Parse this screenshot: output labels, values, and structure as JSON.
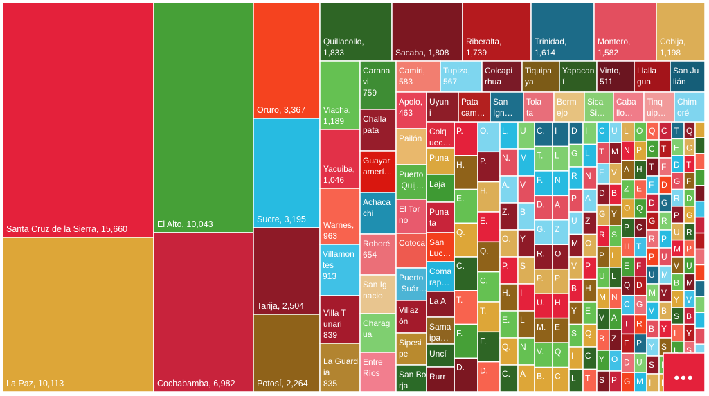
{
  "chart_data": {
    "type": "treemap",
    "title": "",
    "more_indicator": "...",
    "items": [
      {
        "label": "Santa Cruz de la Sierra",
        "value": 15660,
        "color": "#e4213b"
      },
      {
        "label": "La Paz",
        "value": 10113,
        "color": "#dda638"
      },
      {
        "label": "El Alto",
        "value": 10043,
        "color": "#46a037"
      },
      {
        "label": "Cochabamba",
        "value": 6982,
        "color": "#c8233c"
      },
      {
        "label": "Oruro",
        "value": 3367,
        "color": "#f5431f"
      },
      {
        "label": "Sucre",
        "value": 3195,
        "color": "#27bbe1"
      },
      {
        "label": "Tarija",
        "value": 2504,
        "color": "#8e1a27"
      },
      {
        "label": "Potosí",
        "value": 2264,
        "color": "#8f6219"
      },
      {
        "label": "Quillacollo",
        "value": 1833,
        "color": "#2e6525"
      },
      {
        "label": "Sacaba",
        "value": 1808,
        "color": "#7c1721"
      },
      {
        "label": "Riberalta",
        "value": 1739,
        "color": "#b51a1e"
      },
      {
        "label": "Trinidad",
        "value": 1614,
        "color": "#1c6b88"
      },
      {
        "label": "Montero",
        "value": 1582,
        "color": "#e34f5f"
      },
      {
        "label": "Cobija",
        "value": 1198,
        "color": "#dcae56"
      },
      {
        "label": "Viacha",
        "value": 1189,
        "color": "#65c152"
      },
      {
        "label": "Yacuiba",
        "value": 1046,
        "color": "#e23148"
      },
      {
        "label": "Warnes",
        "value": 963,
        "color": "#f8634e"
      },
      {
        "label": "Villamontes",
        "value": 913,
        "color": "#40c1e6"
      },
      {
        "label": "Villa Tunari",
        "value": 839,
        "color": "#a51a2c"
      },
      {
        "label": "La Guardia",
        "value": 835,
        "color": "#b28430"
      },
      {
        "label": "Caranavi",
        "value": 759,
        "color": "#3e8d34"
      },
      {
        "label": "Challapata",
        "value": null,
        "color": "#971d2b"
      },
      {
        "label": "Guayaramerín",
        "value": null,
        "color": "#d9170f"
      },
      {
        "label": "Achacachi",
        "value": null,
        "color": "#1f8fb0"
      },
      {
        "label": "Roboré",
        "value": 654,
        "color": "#eb6f78"
      },
      {
        "label": "San Ignacio",
        "value": null,
        "color": "#e8c58f"
      },
      {
        "label": "Charagua",
        "value": null,
        "color": "#7fcf70"
      },
      {
        "label": "Entre Ríos",
        "value": null,
        "color": "#f27e8e"
      },
      {
        "label": "Camiri",
        "value": 583,
        "color": "#f27e70"
      },
      {
        "label": "Tupiza",
        "value": 567,
        "color": "#7ed6ef"
      },
      {
        "label": "Colcapirhua",
        "value": null,
        "color": "#7a1a27"
      },
      {
        "label": "Tiquipaya",
        "value": 518,
        "color": "#7c5b17"
      },
      {
        "label": "Yapacaní",
        "value": 517,
        "color": "#2f5d22"
      },
      {
        "label": "Vinto",
        "value": 511,
        "color": "#6b1520"
      },
      {
        "label": "Llallagua",
        "value": null,
        "color": "#a3141a"
      },
      {
        "label": "San Julián",
        "value": null,
        "color": "#155e78"
      },
      {
        "label": "Apolo",
        "value": 463,
        "color": "#e74257"
      },
      {
        "label": "Pailón",
        "value": null,
        "color": "#e9b86c"
      },
      {
        "label": "Puerto Quijarro",
        "value": null,
        "color": "#59b347"
      },
      {
        "label": "El Torno",
        "value": null,
        "color": "#e85a6d"
      },
      {
        "label": "Cotoca",
        "value": null,
        "color": "#ee5a4f"
      },
      {
        "label": "Puerto Suárez",
        "value": null,
        "color": "#4cb4d5"
      },
      {
        "label": "Villazón",
        "value": null,
        "color": "#a31a2b"
      },
      {
        "label": "Sipesipe",
        "value": null,
        "color": "#b98a2e"
      },
      {
        "label": "San Borja",
        "value": null,
        "color": "#2b6a27"
      },
      {
        "label": "Uyuni",
        "value": null,
        "color": "#8e1d28"
      },
      {
        "label": "Patacamaya",
        "value": null,
        "color": "#b3201f"
      },
      {
        "label": "San Ignacio de Velasco",
        "value": null,
        "color": "#1d6f8c"
      },
      {
        "label": "Tolata",
        "value": null,
        "color": "#e86e7a"
      },
      {
        "label": "Bermejo",
        "value": null,
        "color": "#e7c27f"
      },
      {
        "label": "Sica Sica",
        "value": null,
        "color": "#88cf74"
      },
      {
        "label": "Caballo Cocha",
        "value": null,
        "color": "#f07c89"
      },
      {
        "label": "Tinquipaya",
        "value": null,
        "color": "#f19a9a"
      },
      {
        "label": "Chimoré",
        "value": null,
        "color": "#7fd5ef"
      },
      {
        "label": "Colquechaca",
        "value": null,
        "color": "#dd2a3e"
      },
      {
        "label": "Puna",
        "value": null,
        "color": "#dba73e"
      },
      {
        "label": "Laja",
        "value": null,
        "color": "#3e9a33"
      },
      {
        "label": "Punata",
        "value": null,
        "color": "#c8243a"
      },
      {
        "label": "San Lucas",
        "value": null,
        "color": "#f33f1d"
      },
      {
        "label": "Comarapa",
        "value": null,
        "color": "#23b4dc"
      },
      {
        "label": "La Asunta",
        "value": null,
        "color": "#8b1a26"
      },
      {
        "label": "Samaipata",
        "value": null,
        "color": "#8f6420"
      },
      {
        "label": "Uncía",
        "value": null,
        "color": "#2b6324"
      },
      {
        "label": "Rurrenabaque",
        "value": null,
        "color": "#7a1620"
      }
    ]
  }
}
